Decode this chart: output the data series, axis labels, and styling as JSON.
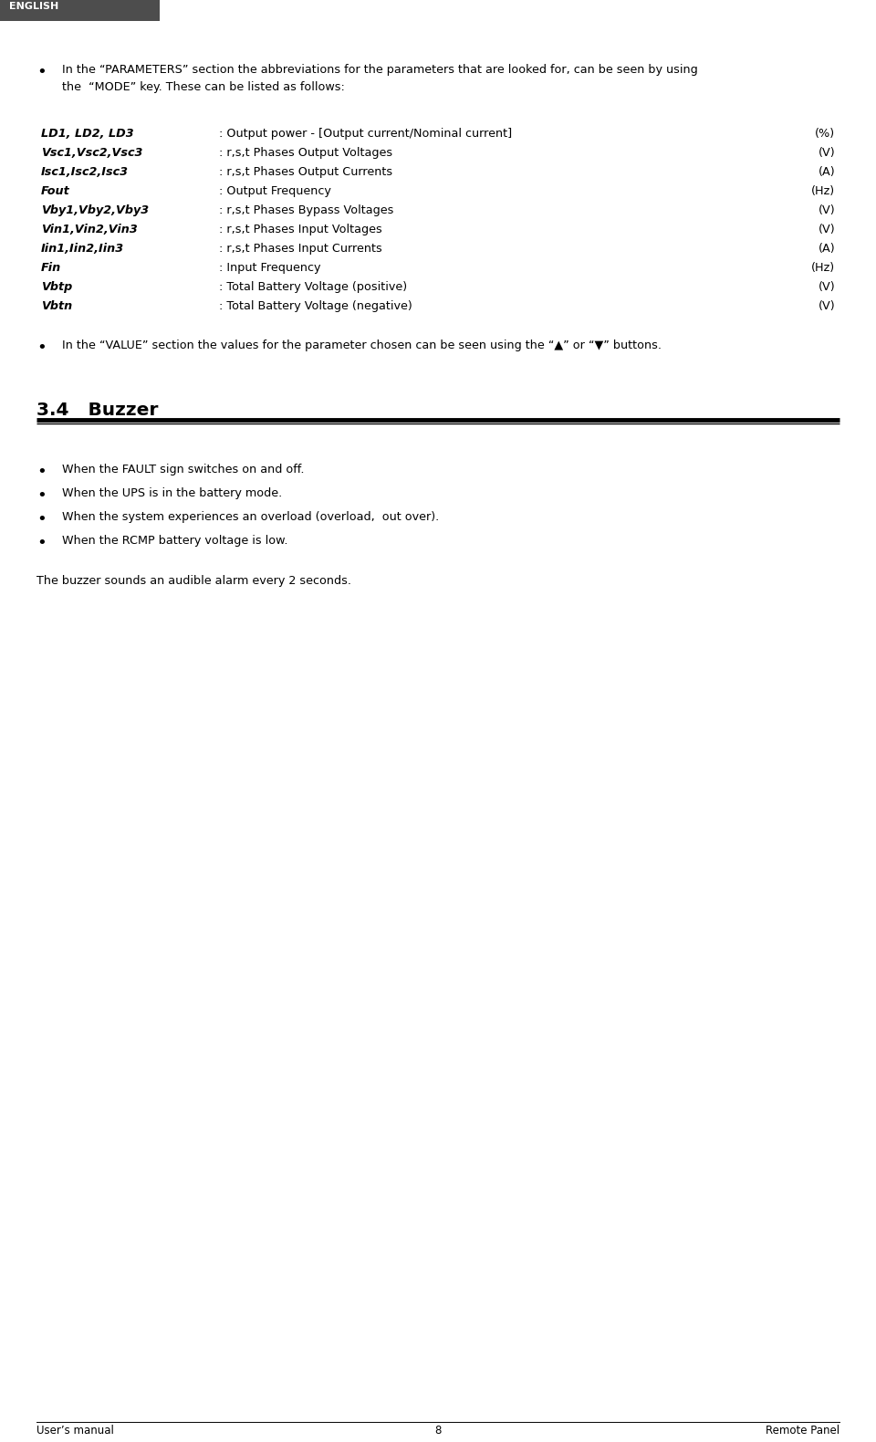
{
  "bg_color": "#ffffff",
  "header_bg": "#4d4d4d",
  "header_text": "ENGLISH",
  "header_text_color": "#ffffff",
  "bullet1_line1": "In the “PARAMETERS” section the abbreviations for the parameters that are looked for, can be seen by using",
  "bullet1_line2": "the  “MODE” key. These can be listed as follows:",
  "params": [
    [
      "LD1, LD2, LD3",
      ": Output power - [Output current/Nominal current]",
      "(%)"
    ],
    [
      "Vsc1,Vsc2,Vsc3",
      ": r,s,t Phases Output Voltages",
      "(V)"
    ],
    [
      "Isc1,Isc2,Isc3",
      ": r,s,t Phases Output Currents",
      "(A)"
    ],
    [
      "Fout",
      ": Output Frequency",
      "(Hz)"
    ],
    [
      "Vby1,Vby2,Vby3",
      ": r,s,t Phases Bypass Voltages",
      "(V)"
    ],
    [
      "Vin1,Vin2,Vin3",
      ": r,s,t Phases Input Voltages",
      "(V)"
    ],
    [
      "Iin1,Iin2,Iin3",
      ": r,s,t Phases Input Currents",
      "(A)"
    ],
    [
      "Fin",
      ": Input Frequency",
      "(Hz)"
    ],
    [
      "Vbtp",
      ": Total Battery Voltage (positive)",
      "(V)"
    ],
    [
      "Vbtn",
      ": Total Battery Voltage (negative)",
      "(V)"
    ]
  ],
  "bullet2_text": "In the “VALUE” section the values for the parameter chosen can be seen using the “▲” or “▼” buttons.",
  "section_title": "3.4   Buzzer",
  "buzzer_bullets": [
    "When the FAULT sign switches on and off.",
    "When the UPS is in the battery mode.",
    "When the system experiences an overload (overload,  out over).",
    "When the RCMP battery voltage is low."
  ],
  "closing_text": "The buzzer sounds an audible alarm every 2 seconds.",
  "footer_left": "User’s manual",
  "footer_center": "8",
  "footer_right": "Remote Panel"
}
